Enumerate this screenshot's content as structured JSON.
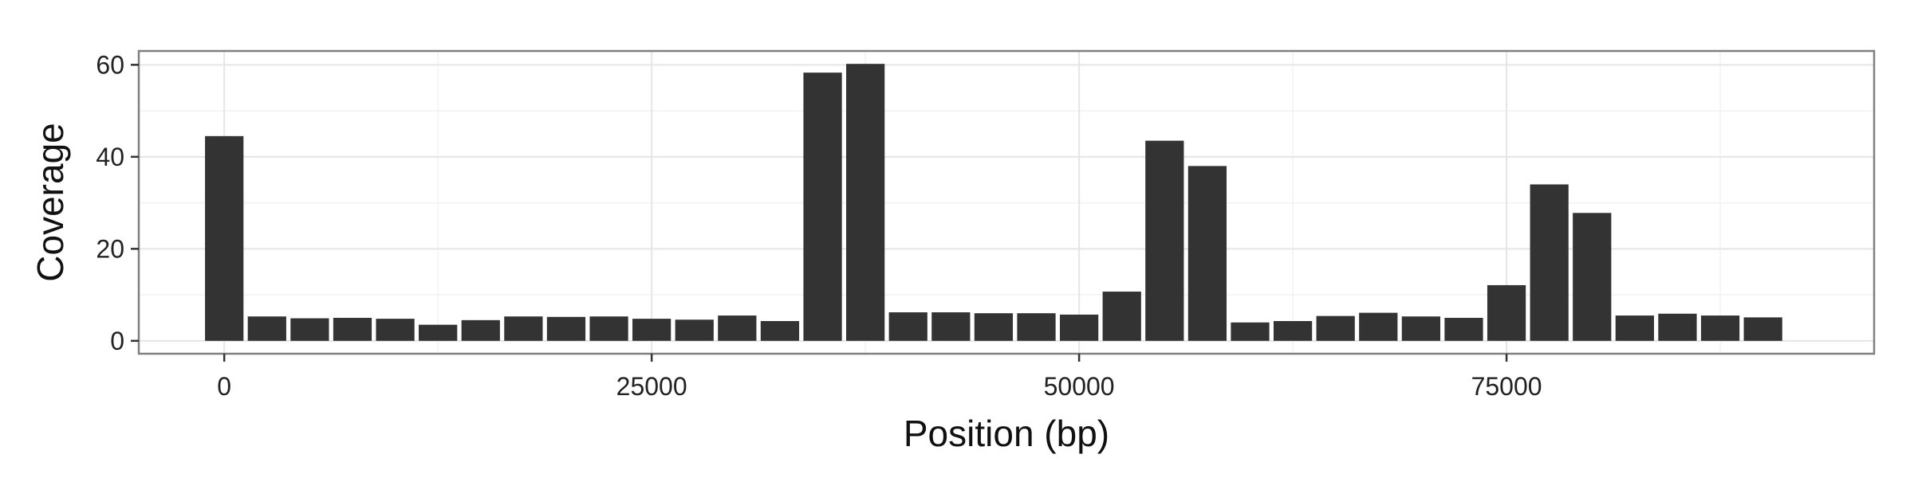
{
  "chart_data": {
    "type": "bar",
    "title": "",
    "xlabel": "Position (bp)",
    "ylabel": "Coverage",
    "xlim": [
      -5000,
      96500
    ],
    "ylim": [
      -2.8,
      63
    ],
    "bin_width": 2500,
    "xticks": [
      0,
      25000,
      50000,
      75000
    ],
    "yticks": [
      0,
      20,
      40,
      60
    ],
    "x_minor_ticks": [
      12500,
      37500,
      62500,
      87500
    ],
    "y_minor_ticks": [
      10,
      30,
      50
    ],
    "grid": true,
    "bar_color": "#333333",
    "x": [
      0,
      2500,
      5000,
      7500,
      10000,
      12500,
      15000,
      17500,
      20000,
      22500,
      25000,
      27500,
      30000,
      32500,
      35000,
      37500,
      40000,
      42500,
      45000,
      47500,
      50000,
      52500,
      55000,
      57500,
      60000,
      62500,
      65000,
      67500,
      70000,
      72500,
      75000,
      77500,
      80000,
      82500,
      85000,
      87500,
      90000
    ],
    "values": [
      44.5,
      5.3,
      4.9,
      5.0,
      4.8,
      3.5,
      4.5,
      5.3,
      5.2,
      5.3,
      4.8,
      4.6,
      5.5,
      4.3,
      58.3,
      60.2,
      6.2,
      6.2,
      6.0,
      6.0,
      5.7,
      10.7,
      43.5,
      38.0,
      4.0,
      4.3,
      5.4,
      6.1,
      5.3,
      5.0,
      12.1,
      34.0,
      27.8,
      5.5,
      5.9,
      5.5,
      5.1
    ]
  }
}
